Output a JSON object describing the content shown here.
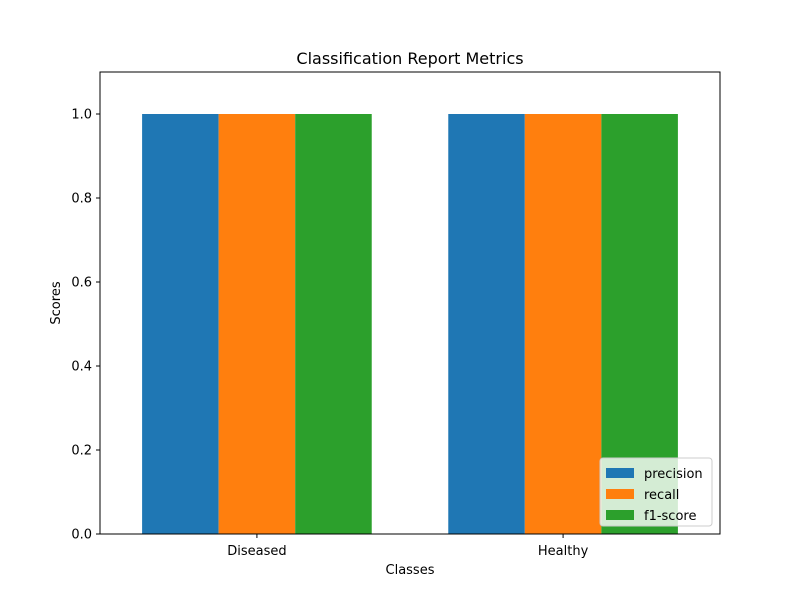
{
  "chart_data": {
    "type": "bar",
    "title": "Classification Report Metrics",
    "xlabel": "Classes",
    "ylabel": "Scores",
    "categories": [
      "Diseased",
      "Healthy"
    ],
    "series": [
      {
        "name": "precision",
        "values": [
          1.0,
          1.0
        ],
        "color": "#1f77b4"
      },
      {
        "name": "recall",
        "values": [
          1.0,
          1.0
        ],
        "color": "#ff7f0e"
      },
      {
        "name": "f1-score",
        "values": [
          1.0,
          1.0
        ],
        "color": "#2ca02c"
      }
    ],
    "ylim": [
      0,
      1.1
    ],
    "yticks": [
      0.0,
      0.2,
      0.4,
      0.6,
      0.8,
      1.0
    ],
    "ytick_labels": [
      "0.0",
      "0.2",
      "0.4",
      "0.6",
      "0.8",
      "1.0"
    ],
    "grid": false,
    "legend_position": "lower-right"
  }
}
